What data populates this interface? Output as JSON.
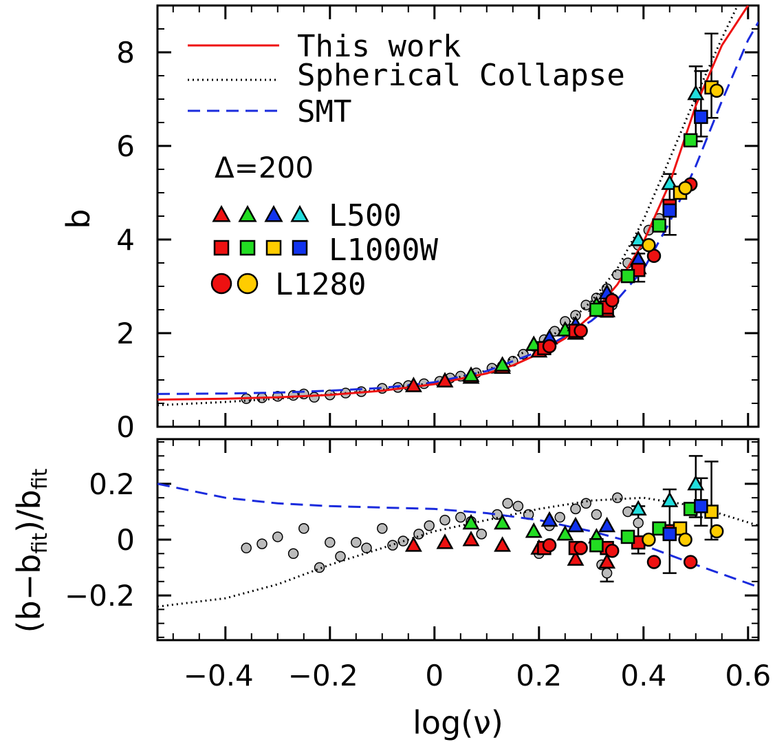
{
  "chart_data": [
    {
      "type": "scatter",
      "panel": "top",
      "ylabel": "b",
      "xlim": [
        -0.53,
        0.62
      ],
      "ylim": [
        0,
        9
      ],
      "x_ticks": [
        -0.4,
        -0.2,
        0,
        0.2,
        0.4,
        0.6
      ],
      "y_ticks": [
        0,
        2,
        4,
        6,
        8
      ],
      "y_tick_labels": [
        "0",
        "2",
        "4",
        "6",
        "8"
      ],
      "annotation": "Δ=200",
      "legend_lines": [
        {
          "label": "This work",
          "style": "solid",
          "color": "#ee1111"
        },
        {
          "label": "Spherical Collapse",
          "style": "dotted",
          "color": "#000000"
        },
        {
          "label": "SMT",
          "style": "dashed",
          "color": "#1a2bdd"
        }
      ],
      "legend_markers": [
        {
          "label": "L500",
          "marker": "triangle",
          "colors": [
            "red",
            "green",
            "blue",
            "cyan"
          ]
        },
        {
          "label": "L1000W",
          "marker": "square",
          "colors": [
            "red",
            "green",
            "yellow",
            "blue"
          ]
        },
        {
          "label": "L1280",
          "marker": "circle",
          "colors": [
            "red",
            "yellow"
          ]
        }
      ],
      "lines": {
        "this_work": [
          [
            -0.53,
            0.58
          ],
          [
            -0.4,
            0.6
          ],
          [
            -0.3,
            0.63
          ],
          [
            -0.2,
            0.68
          ],
          [
            -0.1,
            0.77
          ],
          [
            0,
            0.91
          ],
          [
            0.1,
            1.14
          ],
          [
            0.15,
            1.31
          ],
          [
            0.2,
            1.56
          ],
          [
            0.25,
            1.89
          ],
          [
            0.3,
            2.38
          ],
          [
            0.35,
            3.04
          ],
          [
            0.4,
            3.95
          ],
          [
            0.45,
            5.2
          ],
          [
            0.5,
            6.86
          ],
          [
            0.55,
            8.15
          ],
          [
            0.6,
            9.0
          ]
        ],
        "spherical_collapse": [
          [
            -0.53,
            0.46
          ],
          [
            -0.4,
            0.53
          ],
          [
            -0.3,
            0.6
          ],
          [
            -0.2,
            0.69
          ],
          [
            -0.1,
            0.79
          ],
          [
            0,
            0.94
          ],
          [
            0.1,
            1.2
          ],
          [
            0.2,
            1.75
          ],
          [
            0.25,
            2.15
          ],
          [
            0.3,
            2.68
          ],
          [
            0.35,
            3.38
          ],
          [
            0.4,
            4.42
          ],
          [
            0.45,
            5.72
          ],
          [
            0.5,
            7.05
          ],
          [
            0.55,
            8.3
          ],
          [
            0.58,
            9.0
          ]
        ],
        "smt": [
          [
            -0.53,
            0.7
          ],
          [
            -0.4,
            0.71
          ],
          [
            -0.3,
            0.73
          ],
          [
            -0.2,
            0.77
          ],
          [
            -0.1,
            0.83
          ],
          [
            0,
            0.95
          ],
          [
            0.1,
            1.19
          ],
          [
            0.2,
            1.61
          ],
          [
            0.3,
            2.26
          ],
          [
            0.35,
            2.72
          ],
          [
            0.4,
            3.36
          ],
          [
            0.45,
            4.37
          ],
          [
            0.5,
            5.57
          ],
          [
            0.55,
            6.96
          ],
          [
            0.6,
            8.26
          ],
          [
            0.62,
            8.65
          ]
        ]
      },
      "gray_points": [
        [
          -0.36,
          0.6
        ],
        [
          -0.33,
          0.62
        ],
        [
          -0.3,
          0.65
        ],
        [
          -0.27,
          0.67
        ],
        [
          -0.25,
          0.7
        ],
        [
          -0.23,
          0.63
        ],
        [
          -0.2,
          0.68
        ],
        [
          -0.17,
          0.72
        ],
        [
          -0.14,
          0.75
        ],
        [
          -0.1,
          0.82
        ],
        [
          -0.07,
          0.84
        ],
        [
          -0.05,
          0.88
        ],
        [
          -0.02,
          0.92
        ],
        [
          0.01,
          0.97
        ],
        [
          0.03,
          1.04
        ],
        [
          0.05,
          1.08
        ],
        [
          0.08,
          1.15
        ],
        [
          0.11,
          1.25
        ],
        [
          0.13,
          1.3
        ],
        [
          0.15,
          1.4
        ],
        [
          0.17,
          1.55
        ],
        [
          0.19,
          1.72
        ],
        [
          0.21,
          1.86
        ],
        [
          0.23,
          2.04
        ],
        [
          0.25,
          2.25
        ],
        [
          0.27,
          2.38
        ],
        [
          0.29,
          2.6
        ],
        [
          0.31,
          2.75
        ],
        [
          0.33,
          2.95
        ],
        [
          0.35,
          3.25
        ],
        [
          0.37,
          3.5
        ],
        [
          0.39,
          3.88
        ],
        [
          0.41,
          4.2
        ],
        [
          0.43,
          4.45
        ],
        [
          0.32,
          2.45
        ],
        [
          0.34,
          2.6
        ]
      ],
      "series": [
        {
          "name": "L500",
          "marker": "triangle",
          "color": "#ee1111",
          "points": [
            [
              -0.04,
              0.88
            ],
            [
              0.02,
              0.98
            ],
            [
              0.07,
              1.06
            ],
            [
              0.13,
              1.27
            ],
            [
              0.2,
              1.62
            ],
            [
              0.27,
              2.0
            ],
            [
              0.33,
              2.48
            ],
            [
              0.39,
              3.4
            ]
          ]
        },
        {
          "name": "L500",
          "marker": "triangle",
          "color": "#22dd22",
          "points": [
            [
              0.07,
              1.1
            ],
            [
              0.13,
              1.32
            ],
            [
              0.19,
              1.76
            ],
            [
              0.25,
              2.07
            ],
            [
              0.31,
              2.6
            ]
          ]
        },
        {
          "name": "L500",
          "marker": "triangle",
          "color": "#1133ee",
          "points": [
            [
              0.22,
              1.9
            ],
            [
              0.27,
              2.18
            ],
            [
              0.33,
              2.86
            ],
            [
              0.39,
              3.58
            ]
          ]
        },
        {
          "name": "L500",
          "marker": "triangle",
          "color": "#22dddd",
          "points": [
            [
              0.39,
              4.0
            ],
            [
              0.45,
              5.2
            ],
            [
              0.5,
              7.12
            ]
          ]
        },
        {
          "name": "L1000W",
          "marker": "square",
          "color": "#ee1111",
          "points": [
            [
              0.21,
              1.68
            ],
            [
              0.27,
              2.05
            ],
            [
              0.33,
              2.55
            ],
            [
              0.39,
              3.35
            ],
            [
              0.45,
              4.72
            ]
          ]
        },
        {
          "name": "L1000W",
          "marker": "square",
          "color": "#22dd22",
          "points": [
            [
              0.31,
              2.5
            ],
            [
              0.37,
              3.22
            ],
            [
              0.43,
              4.3
            ],
            [
              0.49,
              6.12
            ]
          ]
        },
        {
          "name": "L1000W",
          "marker": "square",
          "color": "#ffcc00",
          "points": [
            [
              0.47,
              5.0
            ],
            [
              0.53,
              7.25
            ]
          ]
        },
        {
          "name": "L1000W",
          "marker": "square",
          "color": "#1133ee",
          "points": [
            [
              0.45,
              4.62
            ],
            [
              0.51,
              6.62
            ]
          ]
        },
        {
          "name": "L1280",
          "marker": "circle",
          "color": "#ee1111",
          "points": [
            [
              0.22,
              1.72
            ],
            [
              0.28,
              2.05
            ],
            [
              0.34,
              2.7
            ],
            [
              0.42,
              3.65
            ],
            [
              0.49,
              5.18
            ]
          ]
        },
        {
          "name": "L1280",
          "marker": "circle",
          "color": "#ffcc00",
          "points": [
            [
              0.41,
              3.88
            ],
            [
              0.48,
              5.1
            ],
            [
              0.54,
              7.18
            ]
          ]
        }
      ],
      "error_bars": [
        [
          0.33,
          2.35,
          2.85
        ],
        [
          0.39,
          3.1,
          3.7
        ],
        [
          0.45,
          4.1,
          5.4
        ],
        [
          0.5,
          6.1,
          7.7
        ],
        [
          0.53,
          6.6,
          8.4
        ],
        [
          0.51,
          6.2,
          7.6
        ]
      ]
    },
    {
      "type": "scatter",
      "panel": "bottom",
      "xlabel": "log(ν)",
      "ylabel": "(b−b_fit)/b_fit",
      "xlim": [
        -0.53,
        0.62
      ],
      "ylim": [
        -0.36,
        0.36
      ],
      "x_ticks": [
        -0.4,
        -0.2,
        0,
        0.2,
        0.4,
        0.6
      ],
      "x_tick_labels": [
        "−0.4",
        "−0.2",
        "0",
        "0.2",
        "0.4",
        "0.6"
      ],
      "y_ticks": [
        -0.2,
        0,
        0.2
      ],
      "y_tick_labels": [
        "−0.2",
        "0",
        "0.2"
      ],
      "lines": {
        "spherical_collapse": [
          [
            -0.53,
            -0.24
          ],
          [
            -0.4,
            -0.21
          ],
          [
            -0.3,
            -0.16
          ],
          [
            -0.2,
            -0.09
          ],
          [
            -0.1,
            -0.03
          ],
          [
            0,
            0.03
          ],
          [
            0.1,
            0.07
          ],
          [
            0.2,
            0.11
          ],
          [
            0.3,
            0.14
          ],
          [
            0.4,
            0.15
          ],
          [
            0.5,
            0.12
          ],
          [
            0.62,
            0.05
          ]
        ],
        "smt": [
          [
            -0.53,
            0.2
          ],
          [
            -0.4,
            0.15
          ],
          [
            -0.3,
            0.13
          ],
          [
            -0.2,
            0.12
          ],
          [
            -0.1,
            0.115
          ],
          [
            0,
            0.11
          ],
          [
            0.1,
            0.095
          ],
          [
            0.2,
            0.07
          ],
          [
            0.3,
            0.03
          ],
          [
            0.4,
            -0.02
          ],
          [
            0.5,
            -0.09
          ],
          [
            0.62,
            -0.17
          ]
        ]
      },
      "gray_points": [
        [
          -0.36,
          -0.03
        ],
        [
          -0.33,
          -0.015
        ],
        [
          -0.3,
          0.01
        ],
        [
          -0.27,
          -0.05
        ],
        [
          -0.25,
          0.04
        ],
        [
          -0.22,
          -0.1
        ],
        [
          -0.2,
          -0.01
        ],
        [
          -0.18,
          -0.06
        ],
        [
          -0.15,
          -0.01
        ],
        [
          -0.13,
          -0.03
        ],
        [
          -0.1,
          0.04
        ],
        [
          -0.08,
          -0.02
        ],
        [
          -0.06,
          -0.005
        ],
        [
          -0.03,
          0.02
        ],
        [
          -0.01,
          0.05
        ],
        [
          0.02,
          0.07
        ],
        [
          0.05,
          0.08
        ],
        [
          0.07,
          0.065
        ],
        [
          0.09,
          0.02
        ],
        [
          0.12,
          0.09
        ],
        [
          0.14,
          0.13
        ],
        [
          0.16,
          0.12
        ],
        [
          0.18,
          0.09
        ],
        [
          0.2,
          -0.05
        ],
        [
          0.22,
          0.05
        ],
        [
          0.24,
          0.08
        ],
        [
          0.27,
          0.11
        ],
        [
          0.29,
          0.13
        ],
        [
          0.31,
          0.09
        ],
        [
          0.33,
          -0.12
        ],
        [
          0.35,
          0.15
        ],
        [
          0.37,
          0.1
        ],
        [
          0.39,
          0.06
        ],
        [
          0.32,
          -0.09
        ]
      ],
      "series": [
        {
          "name": "L500",
          "marker": "triangle",
          "color": "#ee1111",
          "points": [
            [
              -0.04,
              -0.02
            ],
            [
              0.02,
              -0.01
            ],
            [
              0.07,
              0.0
            ],
            [
              0.13,
              -0.02
            ],
            [
              0.2,
              -0.03
            ],
            [
              0.27,
              -0.07
            ],
            [
              0.33,
              -0.08
            ]
          ]
        },
        {
          "name": "L500",
          "marker": "triangle",
          "color": "#22dd22",
          "points": [
            [
              0.07,
              0.06
            ],
            [
              0.13,
              0.06
            ],
            [
              0.19,
              0.03
            ],
            [
              0.25,
              0.02
            ],
            [
              0.31,
              0.01
            ]
          ]
        },
        {
          "name": "L500",
          "marker": "triangle",
          "color": "#1133ee",
          "points": [
            [
              0.22,
              0.07
            ],
            [
              0.27,
              0.05
            ],
            [
              0.33,
              0.05
            ]
          ]
        },
        {
          "name": "L500",
          "marker": "triangle",
          "color": "#22dddd",
          "points": [
            [
              0.39,
              0.11
            ],
            [
              0.45,
              0.14
            ],
            [
              0.5,
              0.2
            ]
          ]
        },
        {
          "name": "L1000W",
          "marker": "square",
          "color": "#ee1111",
          "points": [
            [
              0.21,
              -0.03
            ],
            [
              0.27,
              -0.03
            ],
            [
              0.33,
              -0.03
            ],
            [
              0.39,
              -0.01
            ],
            [
              0.45,
              0.03
            ]
          ]
        },
        {
          "name": "L1000W",
          "marker": "square",
          "color": "#22dd22",
          "points": [
            [
              0.31,
              -0.02
            ],
            [
              0.37,
              0.01
            ],
            [
              0.43,
              0.04
            ],
            [
              0.49,
              0.11
            ]
          ]
        },
        {
          "name": "L1000W",
          "marker": "square",
          "color": "#ffcc00",
          "points": [
            [
              0.47,
              0.04
            ],
            [
              0.53,
              0.1
            ]
          ]
        },
        {
          "name": "L1000W",
          "marker": "square",
          "color": "#1133ee",
          "points": [
            [
              0.45,
              0.02
            ],
            [
              0.51,
              0.12
            ]
          ]
        },
        {
          "name": "L1280",
          "marker": "circle",
          "color": "#ee1111",
          "points": [
            [
              0.22,
              -0.02
            ],
            [
              0.28,
              -0.03
            ],
            [
              0.34,
              -0.04
            ],
            [
              0.42,
              -0.08
            ],
            [
              0.49,
              -0.08
            ]
          ]
        },
        {
          "name": "L1280",
          "marker": "circle",
          "color": "#ffcc00",
          "points": [
            [
              0.41,
              0.0
            ],
            [
              0.48,
              0.0
            ],
            [
              0.54,
              0.03
            ]
          ]
        }
      ],
      "error_bars": [
        [
          0.33,
          -0.15,
          -0.02
        ],
        [
          0.39,
          -0.05,
          0.12
        ],
        [
          0.45,
          -0.12,
          0.18
        ],
        [
          0.5,
          0.08,
          0.3
        ],
        [
          0.53,
          0.0,
          0.28
        ],
        [
          0.51,
          0.05,
          0.22
        ]
      ]
    }
  ]
}
